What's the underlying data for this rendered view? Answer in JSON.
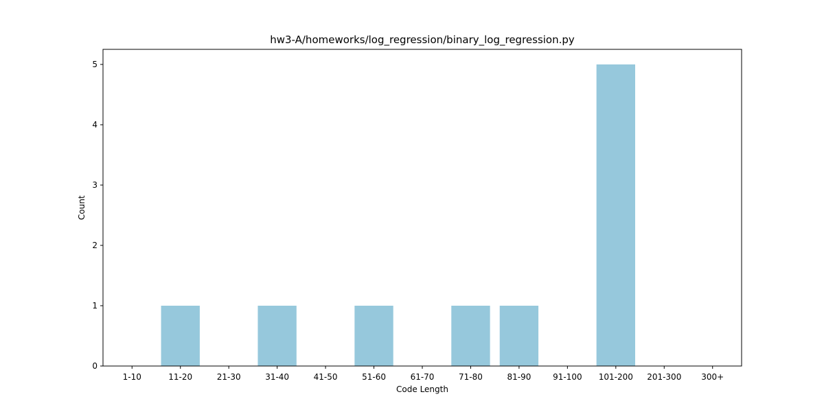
{
  "chart_data": {
    "type": "bar",
    "title": "hw3-A/homeworks/log_regression/binary_log_regression.py",
    "xlabel": "Code Length",
    "ylabel": "Count",
    "categories": [
      "1-10",
      "11-20",
      "21-30",
      "31-40",
      "41-50",
      "51-60",
      "61-70",
      "71-80",
      "81-90",
      "91-100",
      "101-200",
      "201-300",
      "300+"
    ],
    "values": [
      0,
      1,
      0,
      1,
      0,
      1,
      0,
      1,
      1,
      0,
      5,
      0,
      0
    ],
    "ylim": [
      0,
      5.25
    ],
    "yticks": [
      0,
      1,
      2,
      3,
      4,
      5
    ],
    "grid": false,
    "bar_color": "#96c8dc"
  }
}
